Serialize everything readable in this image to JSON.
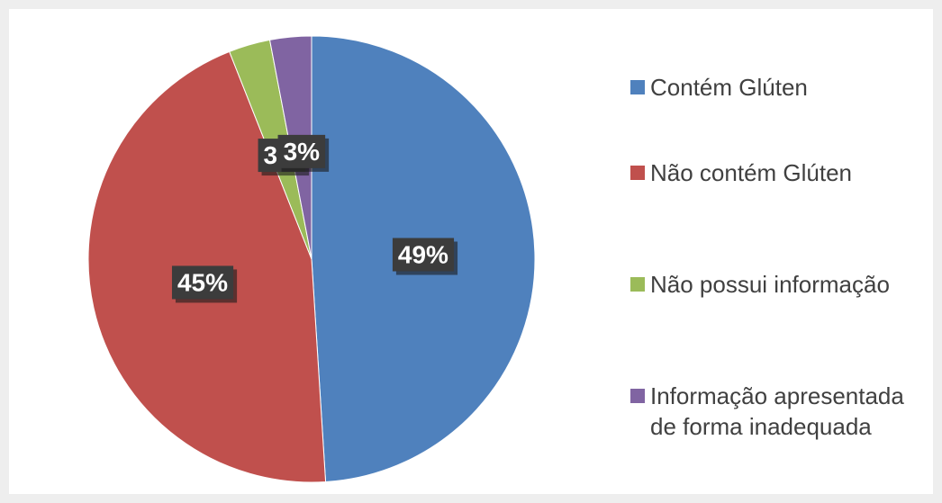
{
  "chart_data": {
    "type": "pie",
    "categories": [
      "Contém Glúten",
      "Não contém Glúten",
      "Não possui informação",
      "Informação apresentada de forma inadequada"
    ],
    "values": [
      49,
      45,
      3,
      3
    ],
    "value_labels": [
      "49%",
      "45%",
      "3%",
      "3%"
    ],
    "colors": [
      "#4f81bd",
      "#c0504d",
      "#9bbb59",
      "#8064a2"
    ],
    "legend": "right"
  }
}
